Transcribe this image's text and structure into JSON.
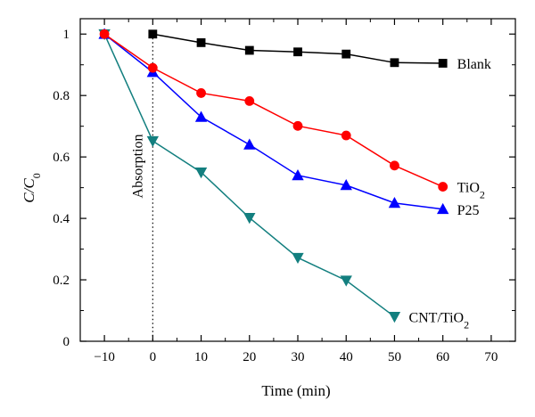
{
  "chart_data": {
    "type": "line",
    "xlabel": "Time (min)",
    "ylabel_main": "C/C",
    "ylabel_sub": "0",
    "xlim": [
      -15,
      75
    ],
    "ylim": [
      0,
      1.05
    ],
    "xticks": [
      -10,
      0,
      10,
      20,
      30,
      40,
      50,
      60,
      70
    ],
    "xtick_labels": [
      "−10",
      "0",
      "10",
      "20",
      "30",
      "40",
      "50",
      "60",
      "70"
    ],
    "yticks": [
      0,
      0.2,
      0.4,
      0.6,
      0.8,
      1
    ],
    "ytick_labels": [
      "0",
      "0.2",
      "0.4",
      "0.6",
      "0.8",
      "1"
    ],
    "grid": false,
    "annotation": {
      "text": "Absorption",
      "x": 0
    },
    "series": [
      {
        "name": "Blank",
        "label_main": "Blank",
        "label_sub": "",
        "color": "#000000",
        "marker": "square",
        "x": [
          0,
          10,
          20,
          30,
          40,
          50,
          60
        ],
        "y": [
          1.0,
          0.972,
          0.947,
          0.942,
          0.935,
          0.907,
          0.905
        ]
      },
      {
        "name": "TiO2",
        "label_main": "TiO",
        "label_sub": "2",
        "color": "#ff0000",
        "marker": "circle",
        "x": [
          -10,
          0,
          10,
          20,
          30,
          40,
          50,
          60
        ],
        "y": [
          1.0,
          0.89,
          0.808,
          0.782,
          0.701,
          0.67,
          0.572,
          0.503
        ]
      },
      {
        "name": "P25",
        "label_main": "P25",
        "label_sub": "",
        "color": "#0000ff",
        "marker": "triangle-up",
        "x": [
          -10,
          0,
          10,
          20,
          30,
          40,
          50,
          60
        ],
        "y": [
          1.0,
          0.876,
          0.73,
          0.64,
          0.54,
          0.508,
          0.45,
          0.43
        ]
      },
      {
        "name": "CNT/TiO2",
        "label_main": "CNT/TiO",
        "label_sub": "2",
        "color": "#137f7f",
        "marker": "triangle-down",
        "x": [
          -10,
          0,
          10,
          20,
          30,
          40,
          50
        ],
        "y": [
          1.0,
          0.652,
          0.55,
          0.402,
          0.272,
          0.198,
          0.08
        ]
      }
    ]
  }
}
